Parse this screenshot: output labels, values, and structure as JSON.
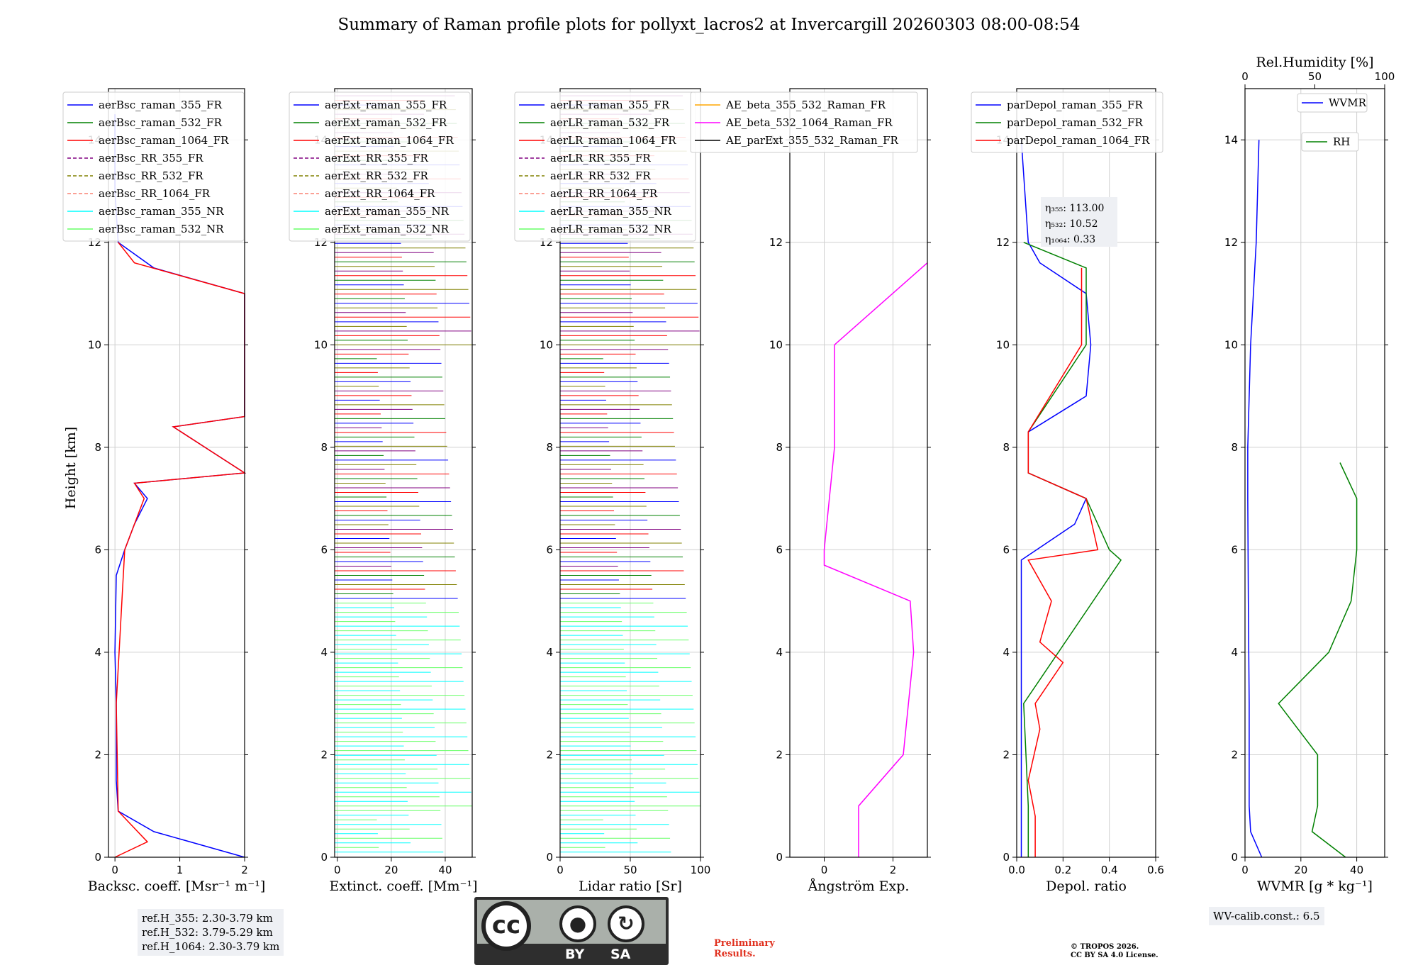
{
  "title": "Summary of Raman profile plots for pollyxt_lacros2 at Invercargill 20260303 08:00-08:54",
  "ylabel": "Height [km]",
  "colors": {
    "blue": "#0000ff",
    "green": "#008000",
    "red": "#ff0000",
    "purple": "#800080",
    "olive": "#808000",
    "salmon": "#fa8072",
    "cyan": "#00ffff",
    "lime": "#66ff66",
    "orange": "#ffa500",
    "magenta": "#ff00ff",
    "black": "#000000",
    "darkgreen": "#008000"
  },
  "panels": [
    {
      "xlabel": "Backsc. coeff. [Msr⁻¹ m⁻¹]",
      "xticks": [
        "0",
        "1",
        "2"
      ],
      "xlim": [
        -0.1,
        2.0
      ],
      "legend": [
        {
          "label": "aerBsc_raman_355_FR",
          "color": "#0000ff",
          "dash": false
        },
        {
          "label": "aerBsc_raman_532_FR",
          "color": "#008000",
          "dash": false
        },
        {
          "label": "aerBsc_raman_1064_FR",
          "color": "#ff0000",
          "dash": false
        },
        {
          "label": "aerBsc_RR_355_FR",
          "color": "#800080",
          "dash": true
        },
        {
          "label": "aerBsc_RR_532_FR",
          "color": "#808000",
          "dash": true
        },
        {
          "label": "aerBsc_RR_1064_FR",
          "color": "#fa8072",
          "dash": true
        },
        {
          "label": "aerBsc_raman_355_NR",
          "color": "#00ffff",
          "dash": false
        },
        {
          "label": "aerBsc_raman_532_NR",
          "color": "#66ff66",
          "dash": false
        }
      ]
    },
    {
      "xlabel": "Extinct. coeff. [Mm⁻¹]",
      "xticks": [
        "0",
        "20",
        "40"
      ],
      "xlim": [
        -1,
        50
      ],
      "legend": [
        {
          "label": "aerExt_raman_355_FR",
          "color": "#0000ff",
          "dash": false
        },
        {
          "label": "aerExt_raman_532_FR",
          "color": "#008000",
          "dash": false
        },
        {
          "label": "aerExt_raman_1064_FR",
          "color": "#ff0000",
          "dash": false
        },
        {
          "label": "aerExt_RR_355_FR",
          "color": "#800080",
          "dash": true
        },
        {
          "label": "aerExt_RR_532_FR",
          "color": "#808000",
          "dash": true
        },
        {
          "label": "aerExt_RR_1064_FR",
          "color": "#fa8072",
          "dash": true
        },
        {
          "label": "aerExt_raman_355_NR",
          "color": "#00ffff",
          "dash": false
        },
        {
          "label": "aerExt_raman_532_NR",
          "color": "#66ff66",
          "dash": false
        }
      ]
    },
    {
      "xlabel": "Lidar ratio [Sr]",
      "xticks": [
        "0",
        "50",
        "100"
      ],
      "xlim": [
        0,
        100
      ],
      "legend": [
        {
          "label": "aerLR_raman_355_FR",
          "color": "#0000ff",
          "dash": false
        },
        {
          "label": "aerLR_raman_532_FR",
          "color": "#008000",
          "dash": false
        },
        {
          "label": "aerLR_raman_1064_FR",
          "color": "#ff0000",
          "dash": false
        },
        {
          "label": "aerLR_RR_355_FR",
          "color": "#800080",
          "dash": true
        },
        {
          "label": "aerLR_RR_532_FR",
          "color": "#808000",
          "dash": true
        },
        {
          "label": "aerLR_RR_1064_FR",
          "color": "#fa8072",
          "dash": true
        },
        {
          "label": "aerLR_raman_355_NR",
          "color": "#00ffff",
          "dash": false
        },
        {
          "label": "aerLR_raman_532_NR",
          "color": "#66ff66",
          "dash": false
        }
      ]
    },
    {
      "xlabel": "Ångström Exp.",
      "xticks": [
        "0",
        "2"
      ],
      "xlim": [
        -1,
        3
      ],
      "legend": [
        {
          "label": "AE_beta_355_532_Raman_FR",
          "color": "#ffa500",
          "dash": false
        },
        {
          "label": "AE_beta_532_1064_Raman_FR",
          "color": "#ff00ff",
          "dash": false
        },
        {
          "label": "AE_parExt_355_532_Raman_FR",
          "color": "#000000",
          "dash": false
        }
      ]
    },
    {
      "xlabel": "Depol. ratio",
      "xticks": [
        "0.0",
        "0.2",
        "0.4",
        "0.6"
      ],
      "xlim": [
        0,
        0.6
      ],
      "legend": [
        {
          "label": "parDepol_raman_355_FR",
          "color": "#0000ff",
          "dash": false
        },
        {
          "label": "parDepol_raman_532_FR",
          "color": "#008000",
          "dash": false
        },
        {
          "label": "parDepol_raman_1064_FR",
          "color": "#ff0000",
          "dash": false
        }
      ],
      "eta": [
        "η₃₅₅: 113.00",
        "η₅₃₂: 10.52",
        "η₁₀₆₄: 0.33"
      ]
    },
    {
      "xlabel": "WVMR [g * kg⁻¹]",
      "xticks": [
        "0",
        "20",
        "40"
      ],
      "xlim": [
        0,
        50
      ],
      "top_label": "Rel.Humidity [%]",
      "top_ticks": [
        "0",
        "50",
        "100"
      ],
      "legend_wvmr": "WVMR",
      "legend_rh": "RH",
      "calib": "WV-calib.const.: 6.5"
    }
  ],
  "yticks": [
    "0",
    "2",
    "4",
    "6",
    "8",
    "10",
    "12",
    "14"
  ],
  "ylim": [
    0,
    15
  ],
  "refs": [
    "ref.H_355: 2.30-3.79 km",
    "ref.H_532: 3.79-5.29 km",
    "ref.H_1064: 2.30-3.79 km"
  ],
  "license": {
    "cc": "cc",
    "by": "BY",
    "sa": "SA"
  },
  "preliminary": [
    "Preliminary",
    "Results."
  ],
  "copyright": [
    "© TROPOS 2026.",
    "CC BY SA 4.0 License."
  ],
  "chart_data": {
    "type": "line",
    "y_axis": "Height [km]",
    "ylim": [
      0,
      15
    ],
    "profiles": {
      "aerBsc_raman_355_FR": {
        "height": [
          0,
          0.5,
          0.9,
          1.5,
          3,
          4,
          5.5,
          6,
          6.5,
          7,
          7.3,
          7.5,
          8.4,
          8.6,
          9,
          11,
          11.5,
          12,
          13,
          14.5
        ],
        "value": [
          2.0,
          0.6,
          0.05,
          0.02,
          0.02,
          0.0,
          0.02,
          0.15,
          0.3,
          0.5,
          0.3,
          2.0,
          0.9,
          2.0,
          2.0,
          2.0,
          0.6,
          0.05,
          0.0,
          0.0
        ]
      },
      "aerBsc_raman_1064_FR": {
        "height": [
          0,
          0.3,
          0.9,
          3,
          6,
          6.5,
          7,
          7.3,
          7.5,
          8.4,
          8.6,
          11,
          11.6,
          12
        ],
        "value": [
          0.0,
          0.5,
          0.05,
          0.02,
          0.15,
          0.3,
          0.45,
          0.3,
          2.0,
          0.9,
          2.0,
          2.0,
          0.3,
          0.05
        ]
      },
      "AE_beta_532_1064_Raman_FR": {
        "height": [
          0,
          1,
          2,
          4,
          5,
          5.7,
          6,
          8,
          10,
          11.6
        ],
        "value": [
          1.0,
          1.0,
          2.3,
          2.6,
          2.5,
          0.0,
          0.0,
          0.3,
          0.3,
          3.0
        ]
      },
      "parDepol_raman_355_FR": {
        "height": [
          0,
          1,
          3,
          5.8,
          6.5,
          7,
          7.5,
          8.3,
          9,
          10,
          11,
          11.6,
          12,
          14
        ],
        "value": [
          0.02,
          0.02,
          0.02,
          0.02,
          0.25,
          0.3,
          0.05,
          0.05,
          0.3,
          0.32,
          0.3,
          0.1,
          0.05,
          0.02
        ]
      },
      "parDepol_raman_532_FR": {
        "height": [
          0,
          1,
          3,
          5.8,
          6,
          7,
          7.5,
          8.3,
          10,
          11.5,
          12
        ],
        "value": [
          0.05,
          0.05,
          0.03,
          0.45,
          0.4,
          0.3,
          0.05,
          0.05,
          0.3,
          0.3,
          0.03
        ]
      },
      "parDepol_raman_1064_FR": {
        "height": [
          0,
          0.8,
          1.5,
          2.5,
          3,
          3.8,
          4.2,
          5,
          5.8,
          6,
          7,
          7.5,
          8.3,
          10,
          11.5
        ],
        "value": [
          0.08,
          0.08,
          0.05,
          0.1,
          0.08,
          0.2,
          0.1,
          0.15,
          0.05,
          0.35,
          0.3,
          0.05,
          0.05,
          0.28,
          0.28
        ]
      },
      "WVMR": {
        "height": [
          0,
          0.5,
          1,
          3,
          5,
          7,
          8,
          10,
          12,
          14
        ],
        "value": [
          6,
          2,
          1.5,
          1.5,
          1.2,
          1.0,
          1.0,
          2.0,
          4.0,
          5.0
        ]
      },
      "RH": {
        "height": [
          0,
          0.5,
          1,
          2,
          3,
          4,
          5,
          6,
          7,
          7.7
        ],
        "value": [
          36,
          24,
          26,
          26,
          12,
          30,
          38,
          40,
          40,
          34
        ]
      }
    }
  }
}
